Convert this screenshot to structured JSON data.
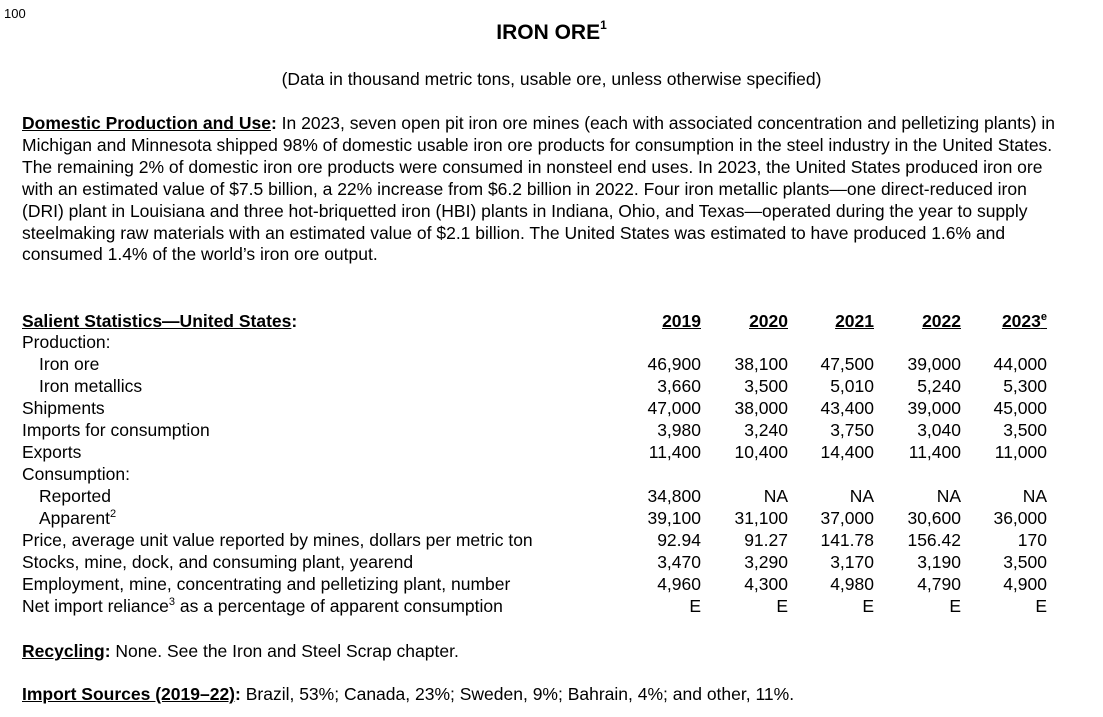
{
  "page_number": "100",
  "title": "IRON ORE",
  "title_footnote": "1",
  "subtitle": "(Data in thousand metric tons, usable ore, unless otherwise specified)",
  "domestic": {
    "heading": "Domestic Production and Use",
    "body": "In 2023, seven open pit iron ore mines (each with associated concentration and pelletizing plants) in Michigan and Minnesota shipped 98% of domestic usable iron ore products for consumption in the steel industry in the United States. The remaining 2% of domestic iron ore products were consumed in nonsteel end uses. In 2023, the United States produced iron ore with an estimated value of $7.5 billion, a 22% increase from $6.2 billion in 2022. Four iron metallic plants—one direct-reduced iron (DRI) plant in Louisiana and three hot-briquetted iron (HBI) plants in Indiana, Ohio, and Texas—operated during the year to supply steelmaking raw materials with an estimated value of $2.1 billion. The United States was estimated to have produced 1.6% and consumed 1.4% of the world’s iron ore output."
  },
  "stats": {
    "heading": "Salient Statistics—United States",
    "years": [
      "2019",
      "2020",
      "2021",
      "2022",
      "2023"
    ],
    "estimate_mark": "e",
    "rows": [
      {
        "label": "Production:",
        "values": [
          "",
          "",
          "",
          "",
          ""
        ]
      },
      {
        "label": "Iron ore",
        "values": [
          "46,900",
          "38,100",
          "47,500",
          "39,000",
          "44,000"
        ]
      },
      {
        "label": "Iron metallics",
        "values": [
          "3,660",
          "3,500",
          "5,010",
          "5,240",
          "5,300"
        ]
      },
      {
        "label": "Shipments",
        "values": [
          "47,000",
          "38,000",
          "43,400",
          "39,000",
          "45,000"
        ]
      },
      {
        "label": "Imports for consumption",
        "values": [
          "3,980",
          "3,240",
          "3,750",
          "3,040",
          "3,500"
        ]
      },
      {
        "label": "Exports",
        "values": [
          "11,400",
          "10,400",
          "14,400",
          "11,400",
          "11,000"
        ]
      },
      {
        "label": "Consumption:",
        "values": [
          "",
          "",
          "",
          "",
          ""
        ]
      },
      {
        "label": "Reported",
        "values": [
          "34,800",
          "NA",
          "NA",
          "NA",
          "NA"
        ]
      },
      {
        "label": "Apparent",
        "sup": "2",
        "values": [
          "39,100",
          "31,100",
          "37,000",
          "30,600",
          "36,000"
        ]
      },
      {
        "label": "Price, average unit value reported by mines, dollars per metric ton",
        "values": [
          "92.94",
          "91.27",
          "141.78",
          "156.42",
          "170"
        ]
      },
      {
        "label": "Stocks, mine, dock, and consuming plant, yearend",
        "values": [
          "3,470",
          "3,290",
          "3,170",
          "3,190",
          "3,500"
        ]
      },
      {
        "label": "Employment, mine, concentrating and pelletizing plant, number",
        "values": [
          "4,960",
          "4,300",
          "4,980",
          "4,790",
          "4,900"
        ]
      },
      {
        "label": "Net import reliance",
        "sup": "3",
        "label_suffix": " as a percentage of apparent consumption",
        "values": [
          "E",
          "E",
          "E",
          "E",
          "E"
        ]
      }
    ]
  },
  "recycling": {
    "heading": "Recycling",
    "body": "None. See the Iron and Steel Scrap chapter."
  },
  "imports": {
    "heading": "Import Sources (2019–22)",
    "body": "Brazil, 53%; Canada, 23%; Sweden, 9%; Bahrain, 4%; and other, 11%."
  }
}
